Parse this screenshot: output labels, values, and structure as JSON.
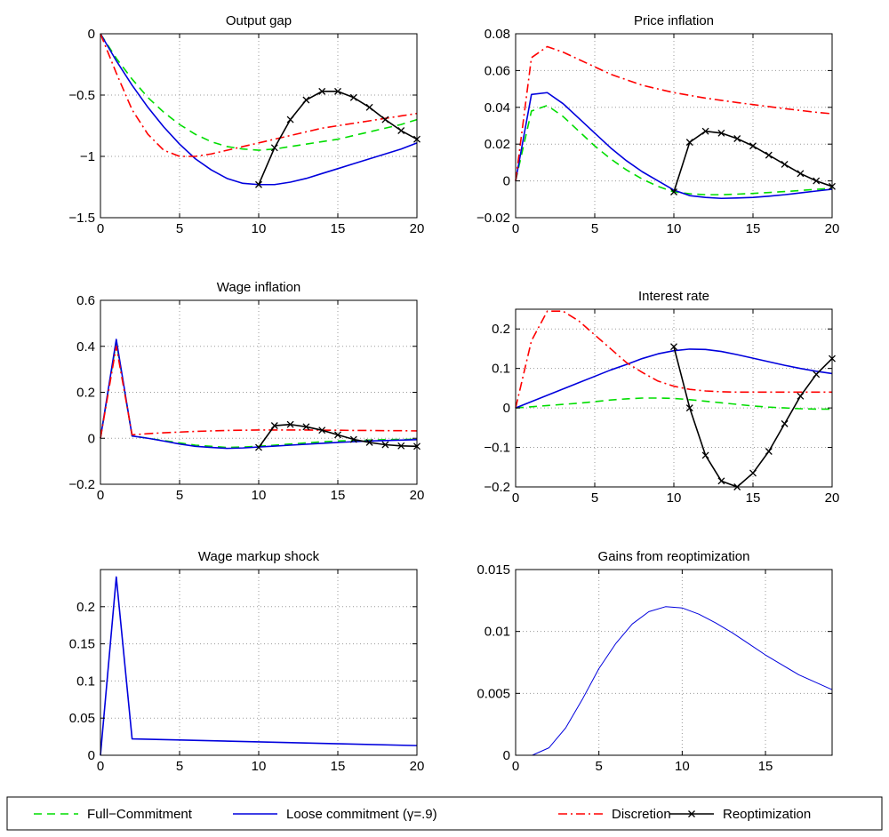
{
  "legend": [
    {
      "label": "Full−Commitment",
      "style": "fullc"
    },
    {
      "label": "Loose commitment (γ=.9)",
      "style": "loose"
    },
    {
      "label": "Discretion",
      "style": "disc"
    },
    {
      "label": "Reoptimization",
      "style": "reopt"
    }
  ],
  "styles": {
    "fullc": {
      "color": "#00dd00",
      "dash": "9 6",
      "width": 1.6,
      "marker": false
    },
    "loose": {
      "color": "#0000dd",
      "dash": "",
      "width": 1.6,
      "marker": false
    },
    "disc": {
      "color": "#ff0000",
      "dash": "10 4 2 4",
      "width": 1.6,
      "marker": false
    },
    "reopt": {
      "color": "#000000",
      "dash": "",
      "width": 1.6,
      "marker": true
    },
    "thin": {
      "color": "#0000dd",
      "dash": "",
      "width": 1,
      "marker": false
    }
  },
  "chart_data": [
    {
      "type": "line",
      "title": "Output gap",
      "xlim": [
        0,
        20
      ],
      "ylim": [
        -1.5,
        0
      ],
      "xticks": [
        0,
        5,
        10,
        15,
        20
      ],
      "yticks": [
        -1.5,
        -1,
        -0.5,
        0
      ],
      "yticklabels": [
        "−1.5",
        "−1",
        "−0.5",
        "0"
      ],
      "grid": true,
      "series": [
        {
          "name": "Full−Commitment",
          "style": "fullc",
          "x": [
            0,
            1,
            2,
            3,
            4,
            5,
            6,
            7,
            8,
            9,
            10,
            11,
            12,
            13,
            14,
            15,
            16,
            17,
            18,
            19,
            20
          ],
          "y": [
            0,
            -0.2,
            -0.37,
            -0.52,
            -0.64,
            -0.74,
            -0.82,
            -0.88,
            -0.92,
            -0.94,
            -0.95,
            -0.94,
            -0.92,
            -0.9,
            -0.88,
            -0.86,
            -0.83,
            -0.8,
            -0.77,
            -0.74,
            -0.7
          ]
        },
        {
          "name": "Loose commitment (γ=.9)",
          "style": "loose",
          "x": [
            0,
            1,
            2,
            3,
            4,
            5,
            6,
            7,
            8,
            9,
            10,
            11,
            12,
            13,
            14,
            15,
            16,
            17,
            18,
            19,
            20
          ],
          "y": [
            0,
            -0.22,
            -0.42,
            -0.6,
            -0.76,
            -0.9,
            -1.02,
            -1.11,
            -1.18,
            -1.22,
            -1.23,
            -1.23,
            -1.21,
            -1.18,
            -1.14,
            -1.1,
            -1.06,
            -1.02,
            -0.98,
            -0.94,
            -0.89
          ]
        },
        {
          "name": "Discretion",
          "style": "disc",
          "x": [
            0,
            1,
            2,
            3,
            4,
            5,
            6,
            7,
            8,
            9,
            10,
            11,
            12,
            13,
            14,
            15,
            16,
            17,
            18,
            19,
            20
          ],
          "y": [
            0,
            -0.32,
            -0.62,
            -0.82,
            -0.95,
            -1.0,
            -1.0,
            -0.98,
            -0.95,
            -0.92,
            -0.89,
            -0.86,
            -0.83,
            -0.8,
            -0.77,
            -0.75,
            -0.73,
            -0.71,
            -0.69,
            -0.67,
            -0.65
          ]
        },
        {
          "name": "Reoptimization",
          "style": "reopt",
          "x": [
            10,
            11,
            12,
            13,
            14,
            15,
            16,
            17,
            18,
            19,
            20
          ],
          "y": [
            -1.23,
            -0.93,
            -0.7,
            -0.54,
            -0.47,
            -0.47,
            -0.52,
            -0.6,
            -0.7,
            -0.79,
            -0.86
          ]
        }
      ]
    },
    {
      "type": "line",
      "title": "Price inflation",
      "xlim": [
        0,
        20
      ],
      "ylim": [
        -0.02,
        0.08
      ],
      "xticks": [
        0,
        5,
        10,
        15,
        20
      ],
      "yticks": [
        -0.02,
        0,
        0.02,
        0.04,
        0.06,
        0.08
      ],
      "yticklabels": [
        "−0.02",
        "0",
        "0.02",
        "0.04",
        "0.06",
        "0.08"
      ],
      "grid": true,
      "series": [
        {
          "name": "Full−Commitment",
          "style": "fullc",
          "x": [
            0,
            1,
            2,
            3,
            4,
            5,
            6,
            7,
            8,
            9,
            10,
            11,
            12,
            13,
            14,
            15,
            16,
            17,
            18,
            19,
            20
          ],
          "y": [
            0,
            0.038,
            0.041,
            0.035,
            0.027,
            0.019,
            0.012,
            0.006,
            0.001,
            -0.003,
            -0.006,
            -0.007,
            -0.0075,
            -0.0075,
            -0.0072,
            -0.0068,
            -0.0063,
            -0.0058,
            -0.0052,
            -0.0046,
            -0.004
          ]
        },
        {
          "name": "Loose commitment (γ=.9)",
          "style": "loose",
          "x": [
            0,
            1,
            2,
            3,
            4,
            5,
            6,
            7,
            8,
            9,
            10,
            11,
            12,
            13,
            14,
            15,
            16,
            17,
            18,
            19,
            20
          ],
          "y": [
            0,
            0.047,
            0.048,
            0.042,
            0.034,
            0.026,
            0.018,
            0.011,
            0.005,
            0.0,
            -0.005,
            -0.008,
            -0.009,
            -0.0095,
            -0.0093,
            -0.009,
            -0.0083,
            -0.0075,
            -0.0065,
            -0.0055,
            -0.0045
          ]
        },
        {
          "name": "Discretion",
          "style": "disc",
          "x": [
            0,
            1,
            2,
            3,
            4,
            5,
            6,
            7,
            8,
            9,
            10,
            11,
            12,
            13,
            14,
            15,
            16,
            17,
            18,
            19,
            20
          ],
          "y": [
            0,
            0.067,
            0.073,
            0.07,
            0.066,
            0.062,
            0.058,
            0.055,
            0.052,
            0.05,
            0.048,
            0.0465,
            0.045,
            0.0438,
            0.0426,
            0.0415,
            0.0404,
            0.0393,
            0.0383,
            0.0373,
            0.0365
          ]
        },
        {
          "name": "Reoptimization",
          "style": "reopt",
          "x": [
            10,
            11,
            12,
            13,
            14,
            15,
            16,
            17,
            18,
            19,
            20
          ],
          "y": [
            -0.006,
            0.021,
            0.027,
            0.026,
            0.023,
            0.019,
            0.014,
            0.009,
            0.004,
            0.0,
            -0.003
          ]
        }
      ]
    },
    {
      "type": "line",
      "title": "Wage inflation",
      "xlim": [
        0,
        20
      ],
      "ylim": [
        -0.2,
        0.6
      ],
      "xticks": [
        0,
        5,
        10,
        15,
        20
      ],
      "yticks": [
        -0.2,
        0,
        0.2,
        0.4,
        0.6
      ],
      "yticklabels": [
        "−0.2",
        "0",
        "0.2",
        "0.4",
        "0.6"
      ],
      "grid": true,
      "series": [
        {
          "name": "Full−Commitment",
          "style": "fullc",
          "x": [
            0,
            1,
            2,
            3,
            4,
            5,
            6,
            7,
            8,
            9,
            10,
            11,
            12,
            13,
            14,
            15,
            16,
            17,
            18,
            19,
            20
          ],
          "y": [
            0,
            0.42,
            0.01,
            0.0,
            -0.01,
            -0.02,
            -0.03,
            -0.035,
            -0.04,
            -0.038,
            -0.035,
            -0.03,
            -0.025,
            -0.02,
            -0.015,
            -0.012,
            -0.01,
            -0.008,
            -0.006,
            -0.005,
            -0.004
          ]
        },
        {
          "name": "Loose commitment (γ=.9)",
          "style": "loose",
          "x": [
            0,
            1,
            2,
            3,
            4,
            5,
            6,
            7,
            8,
            9,
            10,
            11,
            12,
            13,
            14,
            15,
            16,
            17,
            18,
            19,
            20
          ],
          "y": [
            0,
            0.43,
            0.01,
            0.0,
            -0.012,
            -0.025,
            -0.035,
            -0.04,
            -0.044,
            -0.042,
            -0.038,
            -0.034,
            -0.03,
            -0.026,
            -0.022,
            -0.018,
            -0.015,
            -0.012,
            -0.01,
            -0.008,
            -0.006
          ]
        },
        {
          "name": "Discretion",
          "style": "disc",
          "x": [
            0,
            1,
            2,
            3,
            4,
            5,
            6,
            7,
            8,
            9,
            10,
            11,
            12,
            13,
            14,
            15,
            16,
            17,
            18,
            19,
            20
          ],
          "y": [
            0,
            0.4,
            0.015,
            0.02,
            0.024,
            0.027,
            0.03,
            0.032,
            0.034,
            0.035,
            0.036,
            0.036,
            0.036,
            0.036,
            0.035,
            0.035,
            0.034,
            0.034,
            0.033,
            0.033,
            0.032
          ]
        },
        {
          "name": "Reoptimization",
          "style": "reopt",
          "x": [
            10,
            11,
            12,
            13,
            14,
            15,
            16,
            17,
            18,
            19,
            20
          ],
          "y": [
            -0.04,
            0.055,
            0.06,
            0.05,
            0.035,
            0.015,
            -0.005,
            -0.018,
            -0.028,
            -0.033,
            -0.035
          ]
        }
      ]
    },
    {
      "type": "line",
      "title": "Interest rate",
      "xlim": [
        0,
        20
      ],
      "ylim": [
        -0.2,
        0.25
      ],
      "xticks": [
        0,
        5,
        10,
        15,
        20
      ],
      "yticks": [
        -0.2,
        -0.1,
        0,
        0.1,
        0.2
      ],
      "yticklabels": [
        "−0.2",
        "−0.1",
        "0",
        "0.1",
        "0.2"
      ],
      "grid": true,
      "series": [
        {
          "name": "Full−Commitment",
          "style": "fullc",
          "x": [
            0,
            1,
            2,
            3,
            4,
            5,
            6,
            7,
            8,
            9,
            10,
            11,
            12,
            13,
            14,
            15,
            16,
            17,
            18,
            19,
            20
          ],
          "y": [
            0,
            0.003,
            0.006,
            0.009,
            0.012,
            0.016,
            0.02,
            0.023,
            0.025,
            0.025,
            0.024,
            0.021,
            0.017,
            0.013,
            0.009,
            0.005,
            0.002,
            0.0,
            -0.002,
            -0.003,
            -0.003
          ]
        },
        {
          "name": "Loose commitment (γ=.9)",
          "style": "loose",
          "x": [
            0,
            1,
            2,
            3,
            4,
            5,
            6,
            7,
            8,
            9,
            10,
            11,
            12,
            13,
            14,
            15,
            16,
            17,
            18,
            19,
            20
          ],
          "y": [
            0,
            0.016,
            0.032,
            0.048,
            0.064,
            0.08,
            0.096,
            0.11,
            0.125,
            0.137,
            0.145,
            0.149,
            0.148,
            0.143,
            0.135,
            0.126,
            0.117,
            0.108,
            0.1,
            0.093,
            0.087
          ]
        },
        {
          "name": "Discretion",
          "style": "disc",
          "x": [
            0,
            1,
            2,
            3,
            4,
            5,
            6,
            7,
            8,
            9,
            10,
            11,
            12,
            13,
            14,
            15,
            16,
            17,
            18,
            19,
            20
          ],
          "y": [
            0,
            0.17,
            0.245,
            0.245,
            0.22,
            0.185,
            0.15,
            0.115,
            0.09,
            0.068,
            0.055,
            0.047,
            0.043,
            0.041,
            0.04,
            0.04,
            0.04,
            0.04,
            0.04,
            0.04,
            0.04
          ]
        },
        {
          "name": "Reoptimization",
          "style": "reopt",
          "x": [
            10,
            11,
            12,
            13,
            14,
            15,
            16,
            17,
            18,
            19,
            20
          ],
          "y": [
            0.155,
            0.0,
            -0.12,
            -0.185,
            -0.2,
            -0.165,
            -0.11,
            -0.04,
            0.03,
            0.085,
            0.125
          ]
        }
      ]
    },
    {
      "type": "line",
      "title": "Wage markup shock",
      "xlim": [
        0,
        20
      ],
      "ylim": [
        0,
        0.25
      ],
      "xticks": [
        0,
        5,
        10,
        15,
        20
      ],
      "yticks": [
        0,
        0.05,
        0.1,
        0.15,
        0.2
      ],
      "yticklabels": [
        "0",
        "0.05",
        "0.1",
        "0.15",
        "0.2"
      ],
      "grid": true,
      "series": [
        {
          "style": "loose",
          "x": [
            0,
            1,
            2,
            5,
            10,
            15,
            20
          ],
          "y": [
            0,
            0.24,
            0.022,
            0.0205,
            0.018,
            0.0155,
            0.013
          ]
        }
      ]
    },
    {
      "type": "line",
      "title": "Gains from reoptimization",
      "xlim": [
        0,
        19
      ],
      "ylim": [
        0,
        0.015
      ],
      "xticks": [
        0,
        5,
        10,
        15
      ],
      "yticks": [
        0,
        0.005,
        0.01,
        0.015
      ],
      "yticklabels": [
        "0",
        "0.005",
        "0.01",
        "0.015"
      ],
      "grid": true,
      "series": [
        {
          "style": "thin",
          "x": [
            1,
            2,
            3,
            4,
            5,
            6,
            7,
            8,
            9,
            10,
            11,
            12,
            13,
            14,
            15,
            16,
            17,
            18,
            19
          ],
          "y": [
            0,
            0.0006,
            0.0022,
            0.0045,
            0.007,
            0.009,
            0.0106,
            0.0116,
            0.012,
            0.0119,
            0.0114,
            0.0107,
            0.0099,
            0.009,
            0.0081,
            0.0073,
            0.0065,
            0.0059,
            0.0053
          ]
        }
      ]
    }
  ]
}
